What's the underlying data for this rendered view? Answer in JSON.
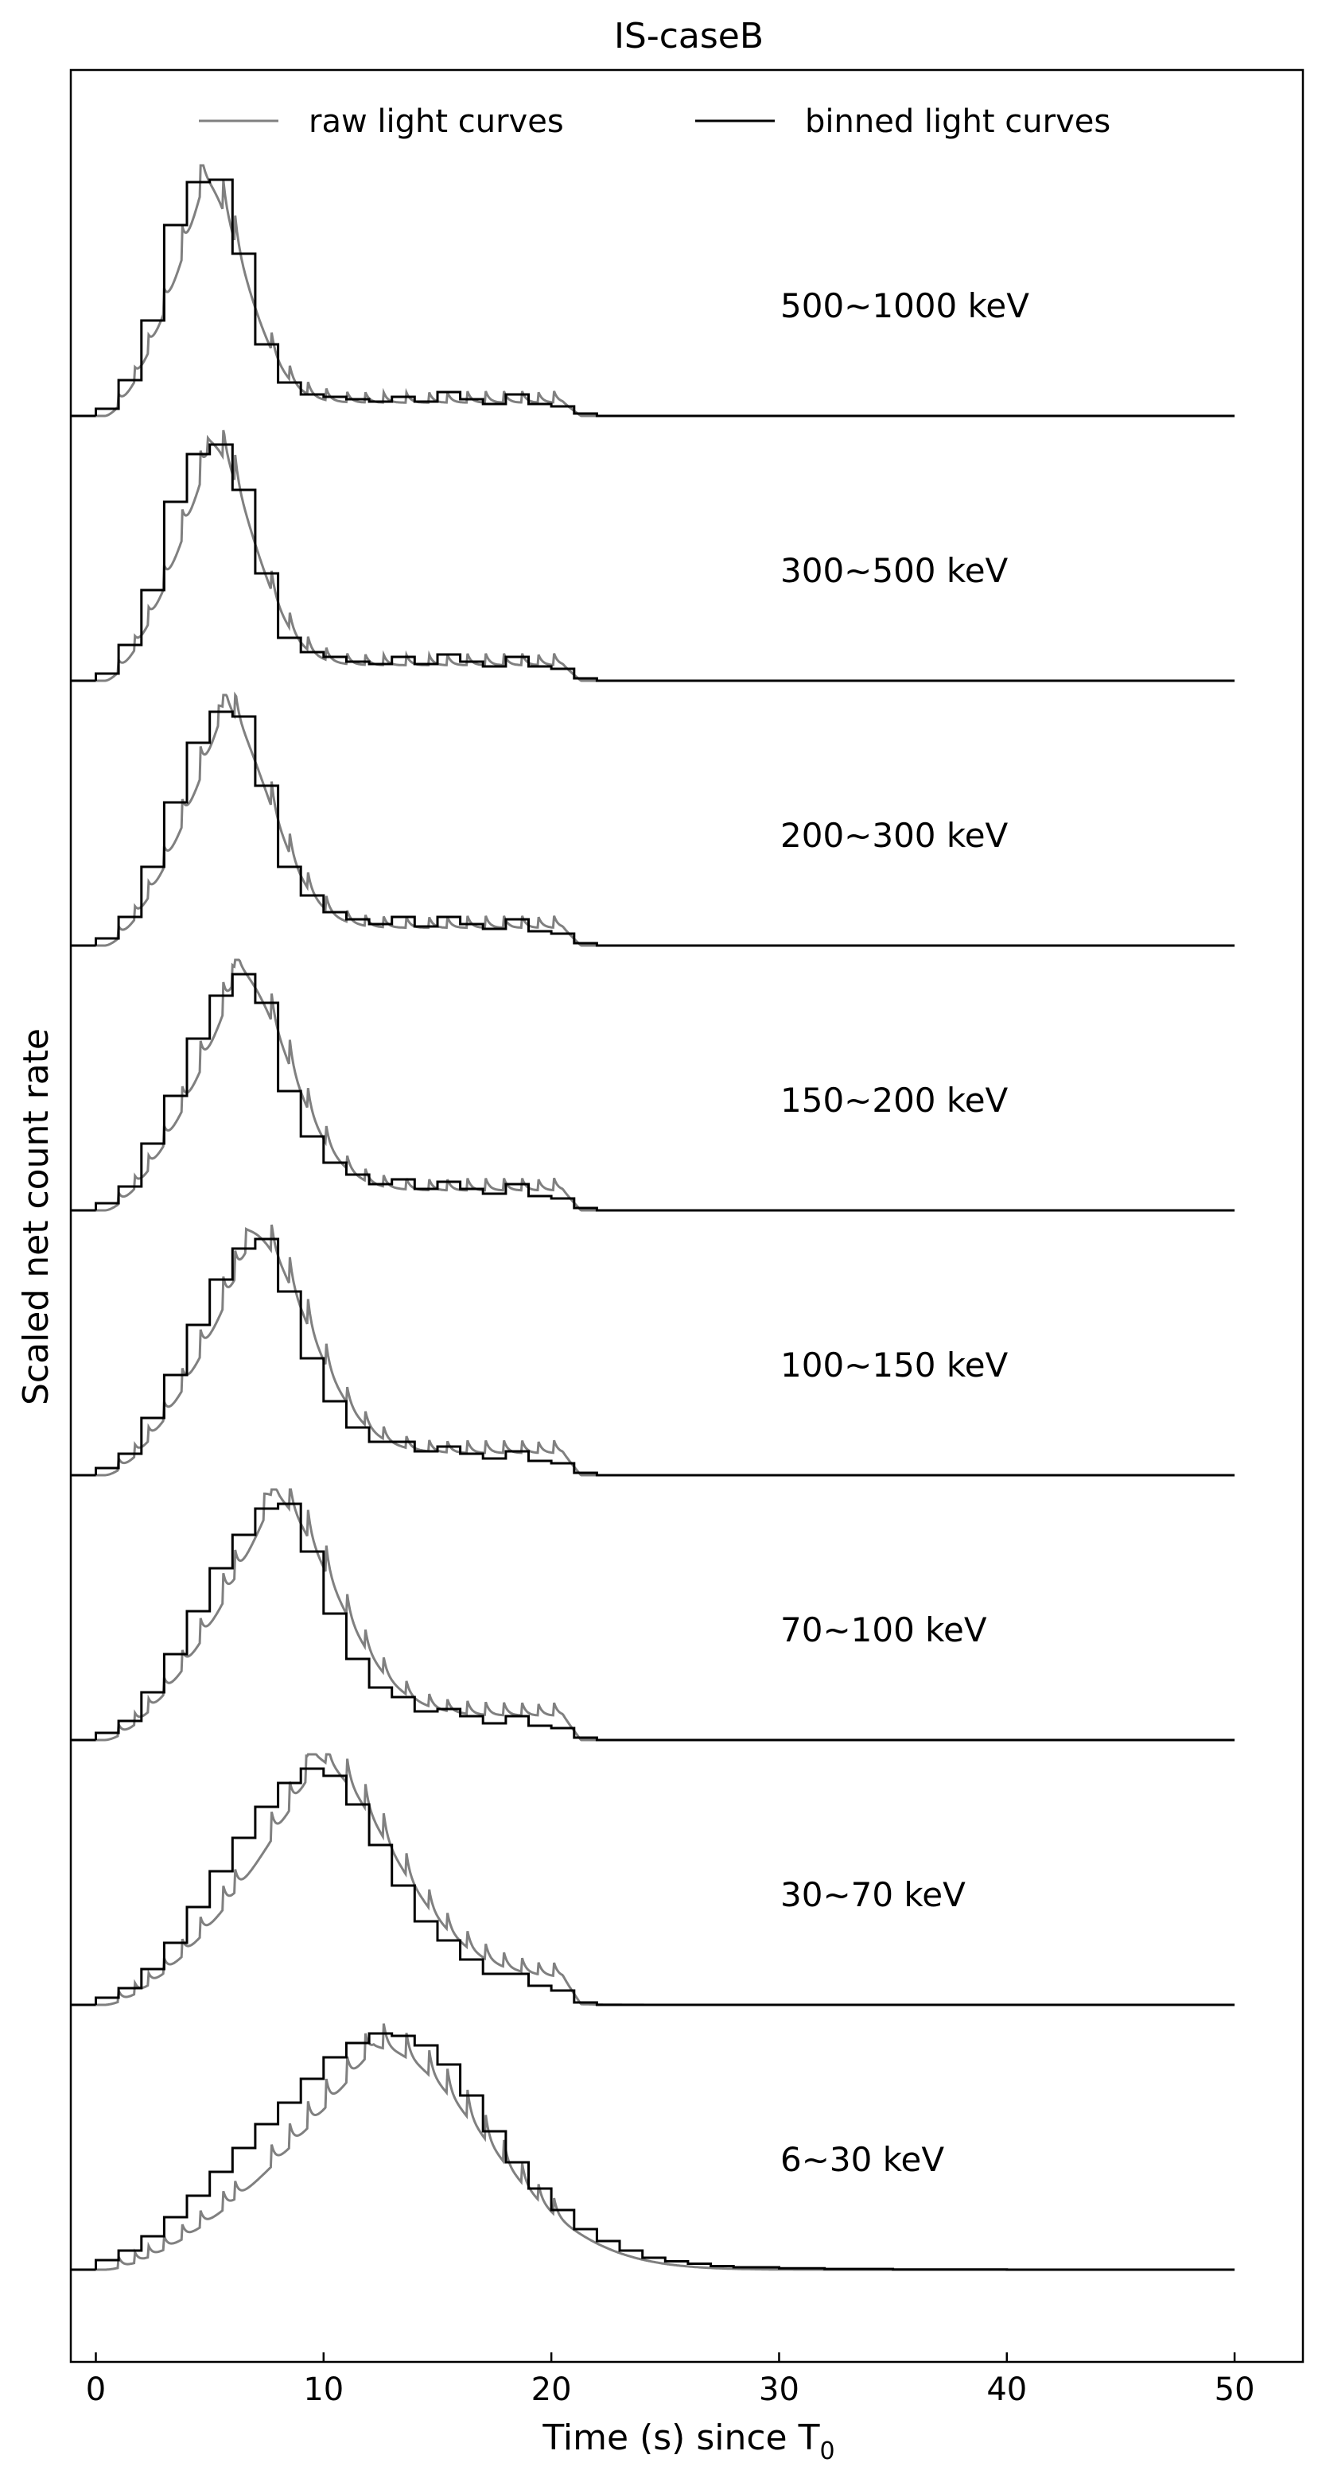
{
  "chart_data": {
    "type": "line",
    "title": "IS-caseB",
    "xlabel": "Time (s) since T",
    "xlabel_subscript": "0",
    "ylabel": "Scaled net count rate",
    "xlim": [
      -1.1,
      53.0
    ],
    "xticks": [
      0,
      10,
      20,
      30,
      40,
      50
    ],
    "xtick_labels": [
      "0",
      "10",
      "20",
      "30",
      "40",
      "50"
    ],
    "grid": false,
    "legend": {
      "placement": "top",
      "entries": [
        {
          "name": "raw light curves",
          "color": "#808080"
        },
        {
          "name": "binned light curves",
          "color": "#000000"
        }
      ]
    },
    "colors": {
      "raw": "#808080",
      "binned": "#000000",
      "axes": "#000000"
    },
    "panel_amplitude_scale": 1.0,
    "series": [
      {
        "band": "500~1000 keV",
        "label": "500~1000 keV",
        "pulse": {
          "rise_start": 0.4,
          "peak_time": 4.6,
          "peak_value": 1.0,
          "decay_tail": 0.06
        },
        "spikes_x": [
          1.0,
          1.7,
          2.3,
          3.0,
          3.8,
          4.6,
          5.6,
          6.1,
          7.7,
          8.5,
          9.3,
          10.1,
          11.0,
          11.8,
          12.6,
          13.6,
          14.6,
          15.4,
          16.3,
          17.1,
          17.9,
          18.7,
          19.4,
          20.1
        ],
        "binned": {
          "edges": [
            0,
            1,
            2,
            3,
            4,
            5,
            6,
            7,
            8,
            9,
            10,
            11,
            12,
            13,
            14,
            15,
            16,
            17,
            18,
            19,
            20,
            21,
            22,
            23,
            24,
            26,
            28,
            30,
            32,
            35,
            40,
            45,
            50
          ],
          "values": [
            0.03,
            0.15,
            0.4,
            0.8,
            0.98,
            0.99,
            0.68,
            0.3,
            0.14,
            0.09,
            0.08,
            0.07,
            0.06,
            0.08,
            0.06,
            0.1,
            0.07,
            0.05,
            0.09,
            0.05,
            0.04,
            0.01,
            0.0,
            0.0,
            0.0,
            0.0,
            0.0,
            0.0,
            0.0,
            0.0,
            0.0,
            0.0
          ]
        }
      },
      {
        "band": "300~500 keV",
        "label": "300~500 keV",
        "pulse": {
          "rise_start": 0.4,
          "peak_time": 4.9,
          "peak_value": 1.0,
          "decay_tail": 0.07
        },
        "spikes_x": [
          1.0,
          1.7,
          2.3,
          3.0,
          3.8,
          4.6,
          5.6,
          6.1,
          7.7,
          8.5,
          9.3,
          10.1,
          11.0,
          11.8,
          12.6,
          13.6,
          14.6,
          15.4,
          16.3,
          17.1,
          17.9,
          18.7,
          19.4,
          20.1
        ],
        "binned": {
          "edges": [
            0,
            1,
            2,
            3,
            4,
            5,
            6,
            7,
            8,
            9,
            10,
            11,
            12,
            13,
            14,
            15,
            16,
            17,
            18,
            19,
            20,
            21,
            22,
            23,
            24,
            26,
            28,
            30,
            32,
            35,
            40,
            45,
            50
          ],
          "values": [
            0.03,
            0.15,
            0.38,
            0.75,
            0.95,
            0.99,
            0.8,
            0.45,
            0.18,
            0.12,
            0.1,
            0.08,
            0.07,
            0.1,
            0.07,
            0.11,
            0.08,
            0.06,
            0.1,
            0.06,
            0.05,
            0.01,
            0.0,
            0.0,
            0.0,
            0.0,
            0.0,
            0.0,
            0.0,
            0.0,
            0.0,
            0.0
          ]
        }
      },
      {
        "band": "200~300 keV",
        "label": "200~300 keV",
        "pulse": {
          "rise_start": 0.4,
          "peak_time": 5.4,
          "peak_value": 1.0,
          "decay_tail": 0.08
        },
        "spikes_x": [
          1.0,
          1.7,
          2.3,
          3.0,
          3.8,
          4.6,
          5.6,
          6.1,
          7.7,
          8.5,
          9.3,
          10.1,
          11.0,
          11.8,
          12.6,
          13.6,
          14.6,
          15.4,
          16.3,
          17.1,
          17.9,
          18.7,
          19.4,
          20.1
        ],
        "binned": {
          "edges": [
            0,
            1,
            2,
            3,
            4,
            5,
            6,
            7,
            8,
            9,
            10,
            11,
            12,
            13,
            14,
            15,
            16,
            17,
            18,
            19,
            20,
            21,
            22,
            23,
            24,
            26,
            28,
            30,
            32,
            35,
            40,
            45,
            50
          ],
          "values": [
            0.03,
            0.12,
            0.33,
            0.6,
            0.85,
            0.98,
            0.96,
            0.67,
            0.33,
            0.21,
            0.14,
            0.11,
            0.09,
            0.12,
            0.08,
            0.12,
            0.09,
            0.07,
            0.11,
            0.06,
            0.05,
            0.01,
            0.0,
            0.0,
            0.0,
            0.0,
            0.0,
            0.0,
            0.0,
            0.0,
            0.0,
            0.0
          ]
        }
      },
      {
        "band": "150~200 keV",
        "label": "150~200 keV",
        "pulse": {
          "rise_start": 0.4,
          "peak_time": 6.0,
          "peak_value": 1.0,
          "decay_tail": 0.09
        },
        "spikes_x": [
          1.0,
          1.7,
          2.3,
          3.0,
          3.8,
          4.6,
          5.6,
          6.1,
          7.7,
          8.5,
          9.3,
          10.1,
          11.0,
          11.8,
          12.6,
          13.6,
          14.6,
          15.4,
          16.3,
          17.1,
          17.9,
          18.7,
          19.4,
          20.1
        ],
        "binned": {
          "edges": [
            0,
            1,
            2,
            3,
            4,
            5,
            6,
            7,
            8,
            9,
            10,
            11,
            12,
            13,
            14,
            15,
            16,
            17,
            18,
            19,
            20,
            21,
            22,
            23,
            24,
            26,
            28,
            30,
            32,
            35,
            40,
            45,
            50
          ],
          "values": [
            0.03,
            0.1,
            0.28,
            0.48,
            0.72,
            0.9,
            0.99,
            0.87,
            0.5,
            0.31,
            0.2,
            0.15,
            0.11,
            0.13,
            0.09,
            0.12,
            0.09,
            0.07,
            0.11,
            0.06,
            0.05,
            0.01,
            0.0,
            0.0,
            0.0,
            0.0,
            0.0,
            0.0,
            0.0,
            0.0,
            0.0,
            0.0
          ]
        }
      },
      {
        "band": "100~150 keV",
        "label": "100~150 keV",
        "pulse": {
          "rise_start": 0.4,
          "peak_time": 6.6,
          "peak_value": 1.0,
          "decay_tail": 0.1
        },
        "spikes_x": [
          1.0,
          1.7,
          2.3,
          3.0,
          3.8,
          4.6,
          5.6,
          6.1,
          7.7,
          8.5,
          9.3,
          10.1,
          11.0,
          11.8,
          12.6,
          13.6,
          14.6,
          15.4,
          16.3,
          17.1,
          17.9,
          18.7,
          19.4,
          20.1
        ],
        "binned": {
          "edges": [
            0,
            1,
            2,
            3,
            4,
            5,
            6,
            7,
            8,
            9,
            10,
            11,
            12,
            13,
            14,
            15,
            16,
            17,
            18,
            19,
            20,
            21,
            22,
            23,
            24,
            26,
            28,
            30,
            32,
            35,
            40,
            45,
            50
          ],
          "values": [
            0.03,
            0.09,
            0.24,
            0.42,
            0.63,
            0.82,
            0.95,
            0.99,
            0.77,
            0.49,
            0.31,
            0.2,
            0.14,
            0.14,
            0.1,
            0.12,
            0.09,
            0.07,
            0.1,
            0.06,
            0.05,
            0.01,
            0.0,
            0.0,
            0.0,
            0.0,
            0.0,
            0.0,
            0.0,
            0.0,
            0.0,
            0.0
          ]
        }
      },
      {
        "band": "70~100 keV",
        "label": "70~100 keV",
        "pulse": {
          "rise_start": 0.4,
          "peak_time": 7.4,
          "peak_value": 1.0,
          "decay_tail": 0.11
        },
        "spikes_x": [
          1.0,
          1.7,
          2.3,
          3.0,
          3.8,
          4.6,
          5.6,
          6.1,
          7.7,
          8.5,
          9.3,
          10.1,
          11.0,
          11.8,
          12.6,
          13.6,
          14.6,
          15.4,
          16.3,
          17.1,
          17.9,
          18.7,
          19.4,
          20.1
        ],
        "binned": {
          "edges": [
            0,
            1,
            2,
            3,
            4,
            5,
            6,
            7,
            8,
            9,
            10,
            11,
            12,
            13,
            14,
            15,
            16,
            17,
            18,
            19,
            20,
            21,
            22,
            23,
            24,
            26,
            28,
            30,
            32,
            35,
            40,
            45,
            50
          ],
          "values": [
            0.03,
            0.08,
            0.2,
            0.36,
            0.54,
            0.72,
            0.86,
            0.97,
            0.99,
            0.79,
            0.53,
            0.34,
            0.22,
            0.18,
            0.12,
            0.13,
            0.1,
            0.07,
            0.1,
            0.06,
            0.05,
            0.01,
            0.0,
            0.0,
            0.0,
            0.0,
            0.0,
            0.0,
            0.0,
            0.0,
            0.0,
            0.0
          ]
        }
      },
      {
        "band": "30~70 keV",
        "label": "30~70 keV",
        "pulse": {
          "rise_start": 0.4,
          "peak_time": 9.2,
          "peak_value": 1.0,
          "decay_tail": 0.12
        },
        "spikes_x": [
          1.0,
          1.7,
          2.3,
          3.0,
          3.8,
          4.6,
          5.6,
          6.1,
          7.7,
          8.5,
          9.3,
          10.1,
          11.0,
          11.8,
          12.6,
          13.6,
          14.6,
          15.4,
          16.3,
          17.1,
          17.9,
          18.7,
          19.4,
          20.1
        ],
        "binned": {
          "edges": [
            0,
            1,
            2,
            3,
            4,
            5,
            6,
            7,
            8,
            9,
            10,
            11,
            12,
            13,
            14,
            15,
            16,
            17,
            18,
            19,
            20,
            21,
            22,
            23,
            24,
            26,
            28,
            30,
            32,
            35,
            40,
            45,
            50
          ],
          "values": [
            0.03,
            0.07,
            0.15,
            0.26,
            0.41,
            0.56,
            0.7,
            0.83,
            0.93,
            0.99,
            0.96,
            0.84,
            0.67,
            0.5,
            0.35,
            0.27,
            0.19,
            0.13,
            0.13,
            0.08,
            0.06,
            0.01,
            0.0,
            0.0,
            0.0,
            0.0,
            0.0,
            0.0,
            0.0,
            0.0,
            0.0,
            0.0
          ]
        }
      },
      {
        "band": "6~30 keV",
        "label": "6~30 keV",
        "pulse": {
          "rise_start": 0.4,
          "peak_time": 12.2,
          "peak_value": 1.0,
          "decay_tail": 0.0
        },
        "spikes_x": [
          1.0,
          1.7,
          2.3,
          3.0,
          3.8,
          4.6,
          5.6,
          6.1,
          7.7,
          8.5,
          9.3,
          10.1,
          11.0,
          11.8,
          12.6,
          13.6,
          14.6,
          15.4,
          16.3,
          17.1,
          17.9,
          18.7,
          19.4,
          20.1
        ],
        "binned": {
          "edges": [
            0,
            1,
            2,
            3,
            4,
            5,
            6,
            7,
            8,
            9,
            10,
            11,
            12,
            13,
            14,
            15,
            16,
            17,
            18,
            19,
            20,
            21,
            22,
            23,
            24,
            25,
            26,
            27,
            28,
            30,
            32,
            35,
            40,
            45,
            50
          ],
          "values": [
            0.04,
            0.08,
            0.14,
            0.22,
            0.31,
            0.41,
            0.51,
            0.61,
            0.7,
            0.8,
            0.89,
            0.95,
            0.99,
            0.98,
            0.94,
            0.86,
            0.73,
            0.58,
            0.45,
            0.34,
            0.25,
            0.17,
            0.12,
            0.08,
            0.05,
            0.035,
            0.025,
            0.015,
            0.01,
            0.006,
            0.003,
            0.001,
            0.0,
            0.0
          ]
        }
      }
    ]
  }
}
